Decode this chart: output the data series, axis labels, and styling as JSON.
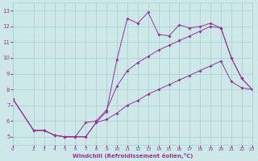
{
  "xlabel": "Windchill (Refroidissement éolien,°C)",
  "background_color": "#cce8e8",
  "grid_color": "#aacece",
  "line_color": "#993399",
  "xlim": [
    0,
    23
  ],
  "ylim": [
    4.5,
    13.5
  ],
  "xticks": [
    0,
    2,
    3,
    4,
    5,
    6,
    7,
    8,
    9,
    10,
    11,
    12,
    13,
    14,
    15,
    16,
    17,
    18,
    19,
    20,
    21,
    22,
    23
  ],
  "yticks": [
    5,
    6,
    7,
    8,
    9,
    10,
    11,
    12,
    13
  ],
  "series1_x": [
    0,
    2,
    3,
    4,
    5,
    6,
    7,
    8,
    9,
    10,
    11,
    12,
    13,
    14,
    15,
    16,
    17,
    18,
    19,
    20,
    21,
    22,
    23
  ],
  "series1_y": [
    7.4,
    5.4,
    5.4,
    5.1,
    5.0,
    5.0,
    5.0,
    5.9,
    6.6,
    9.9,
    12.5,
    12.2,
    12.9,
    11.5,
    11.4,
    12.1,
    11.9,
    12.0,
    12.2,
    11.9,
    10.0,
    8.7,
    8.0
  ],
  "series2_x": [
    0,
    2,
    3,
    4,
    5,
    6,
    7,
    8,
    9,
    10,
    11,
    12,
    13,
    14,
    15,
    16,
    17,
    18,
    19,
    20,
    21,
    22,
    23
  ],
  "series2_y": [
    7.4,
    5.4,
    5.4,
    5.1,
    5.0,
    5.0,
    5.9,
    6.0,
    6.7,
    8.2,
    9.2,
    9.7,
    10.1,
    10.5,
    10.8,
    11.1,
    11.4,
    11.7,
    12.0,
    11.9,
    10.0,
    8.7,
    8.0
  ],
  "series3_x": [
    0,
    2,
    3,
    4,
    5,
    6,
    7,
    8,
    9,
    10,
    11,
    12,
    13,
    14,
    15,
    16,
    17,
    18,
    19,
    20,
    21,
    22,
    23
  ],
  "series3_y": [
    7.4,
    5.4,
    5.4,
    5.1,
    5.0,
    5.0,
    5.0,
    5.9,
    6.1,
    6.5,
    7.0,
    7.3,
    7.7,
    8.0,
    8.3,
    8.6,
    8.9,
    9.2,
    9.5,
    9.8,
    8.5,
    8.1,
    8.0
  ]
}
